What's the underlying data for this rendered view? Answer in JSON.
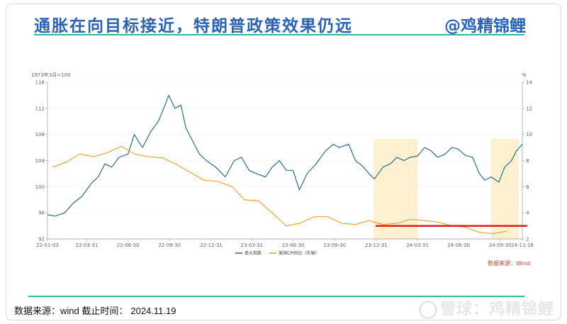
{
  "header": {
    "title": "通胀在向目标接近，特朗普政策效果仍远",
    "handle": "@鸡精锦鲤"
  },
  "footer": {
    "label": "数据来源：wind  截止时间：",
    "date": "2024.11.19"
  },
  "watermark": "雪球：鸡精锦鲤",
  "colors": {
    "accent": "#2a62b8",
    "rule": "#2ebd94",
    "series_left": "#2a6c8c",
    "series_right": "#f29a2e",
    "highlight": "#fdf0cf",
    "target_line": "#e01b1b",
    "source_text": "#e23a3a"
  },
  "chart_data": {
    "type": "line",
    "left_axis_unit": "1973年3月=100",
    "right_axis_unit": "%",
    "ylim_left": [
      92,
      116
    ],
    "ylim_right": [
      2,
      14
    ],
    "y_ticks_left": [
      "116",
      "112",
      "108",
      "104",
      "100",
      "96",
      "92"
    ],
    "y_ticks_right": [
      "14",
      "12",
      "10",
      "8",
      "6",
      "4",
      "2"
    ],
    "x_ticks": [
      "22-01-03",
      "22-03-31",
      "22-06-30",
      "22-09-30",
      "22-12-31",
      "23-03-31",
      "23-06-30",
      "23-09-30",
      "23-12-31",
      "24-03-31",
      "24-06-30",
      "24-09-30",
      "24-11-18"
    ],
    "source": "数据来源：Wind",
    "series": [
      {
        "name": "美元指数",
        "axis": "left",
        "x": [
          "2022-01-03",
          "2022-01-20",
          "2022-02-10",
          "2022-03-01",
          "2022-03-20",
          "2022-04-10",
          "2022-04-25",
          "2022-05-10",
          "2022-05-25",
          "2022-06-10",
          "2022-06-30",
          "2022-07-14",
          "2022-08-01",
          "2022-08-20",
          "2022-09-05",
          "2022-09-20",
          "2022-09-28",
          "2022-10-12",
          "2022-10-25",
          "2022-11-05",
          "2022-11-20",
          "2022-12-05",
          "2022-12-20",
          "2023-01-10",
          "2023-01-31",
          "2023-02-20",
          "2023-03-08",
          "2023-03-25",
          "2023-04-10",
          "2023-04-30",
          "2023-05-15",
          "2023-05-31",
          "2023-06-15",
          "2023-06-30",
          "2023-07-14",
          "2023-07-31",
          "2023-08-20",
          "2023-09-10",
          "2023-09-27",
          "2023-10-10",
          "2023-10-31",
          "2023-11-15",
          "2023-11-30",
          "2023-12-15",
          "2023-12-27",
          "2024-01-15",
          "2024-01-31",
          "2024-02-15",
          "2024-03-01",
          "2024-03-15",
          "2024-03-31",
          "2024-04-16",
          "2024-04-30",
          "2024-05-15",
          "2024-05-31",
          "2024-06-15",
          "2024-06-28",
          "2024-07-15",
          "2024-07-31",
          "2024-08-15",
          "2024-08-27",
          "2024-09-10",
          "2024-09-27",
          "2024-10-10",
          "2024-10-25",
          "2024-11-05",
          "2024-11-18"
        ],
        "values": [
          95.7,
          95.5,
          96.0,
          97.5,
          98.5,
          100.5,
          101.5,
          103.5,
          103.0,
          104.5,
          105.0,
          108.0,
          106.0,
          108.5,
          110.0,
          112.5,
          114.0,
          112.0,
          112.5,
          109.0,
          107.0,
          105.0,
          104.0,
          103.0,
          101.5,
          104.0,
          104.5,
          102.5,
          102.0,
          101.5,
          103.0,
          104.0,
          102.5,
          102.5,
          99.5,
          102.0,
          103.5,
          105.5,
          106.5,
          106.0,
          106.5,
          104.0,
          103.2,
          102.0,
          101.2,
          103.0,
          103.5,
          104.5,
          104.0,
          104.5,
          104.7,
          106.0,
          105.5,
          104.5,
          105.0,
          106.0,
          105.8,
          104.8,
          104.5,
          102.0,
          101.0,
          101.5,
          100.7,
          103.0,
          104.0,
          105.5,
          106.5
        ]
      },
      {
        "name": "美国CPI同比（右轴）",
        "axis": "right",
        "x": [
          "2022-01-15",
          "2022-02-15",
          "2022-03-15",
          "2022-04-15",
          "2022-05-15",
          "2022-06-15",
          "2022-07-15",
          "2022-08-15",
          "2022-09-15",
          "2022-10-15",
          "2022-11-15",
          "2022-12-15",
          "2023-01-15",
          "2023-02-15",
          "2023-03-15",
          "2023-04-15",
          "2023-05-15",
          "2023-06-15",
          "2023-07-15",
          "2023-08-15",
          "2023-09-15",
          "2023-10-15",
          "2023-11-15",
          "2023-12-15",
          "2024-01-15",
          "2024-02-15",
          "2024-03-15",
          "2024-04-15",
          "2024-05-15",
          "2024-06-15",
          "2024-07-15",
          "2024-08-15",
          "2024-09-15",
          "2024-10-15"
        ],
        "values": [
          7.5,
          7.9,
          8.5,
          8.3,
          8.6,
          9.1,
          8.5,
          8.3,
          8.2,
          7.7,
          7.1,
          6.5,
          6.4,
          6.0,
          5.0,
          4.9,
          4.0,
          3.0,
          3.2,
          3.7,
          3.7,
          3.2,
          3.1,
          3.4,
          3.1,
          3.2,
          3.5,
          3.4,
          3.3,
          3.0,
          2.9,
          2.5,
          2.4,
          2.6
        ]
      }
    ]
  }
}
